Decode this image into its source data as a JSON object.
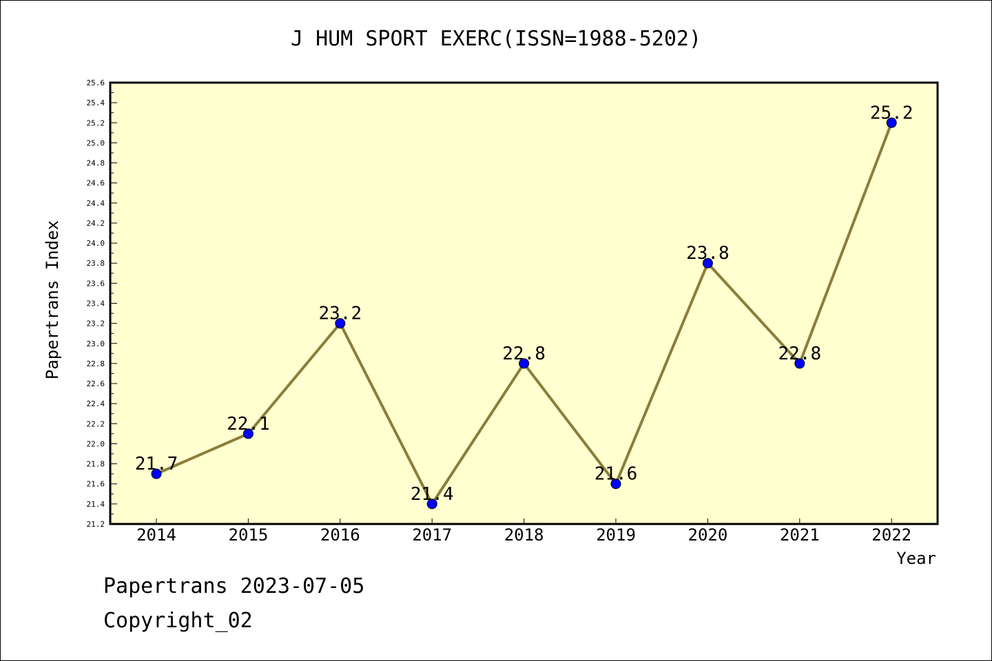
{
  "chart_data": {
    "type": "line",
    "title": "J HUM SPORT EXERC(ISSN=1988-5202)",
    "xlabel": "Year",
    "ylabel": "Papertrans Index",
    "categories": [
      "2014",
      "2015",
      "2016",
      "2017",
      "2018",
      "2019",
      "2020",
      "2021",
      "2022"
    ],
    "values": [
      21.7,
      22.1,
      23.2,
      21.4,
      22.8,
      21.6,
      23.8,
      22.8,
      25.2
    ],
    "data_labels": [
      "21.7",
      "22.1",
      "23.2",
      "21.4",
      "22.8",
      "21.6",
      "23.8",
      "22.8",
      "25.2"
    ],
    "ylim": [
      21.2,
      25.6
    ],
    "yticks": [
      "21.2",
      "21.4",
      "21.6",
      "21.8",
      "22.0",
      "22.2",
      "22.4",
      "22.6",
      "22.8",
      "23.0",
      "23.2",
      "23.4",
      "23.6",
      "23.8",
      "24.0",
      "24.2",
      "24.4",
      "24.6",
      "24.8",
      "25.0",
      "25.2",
      "25.4",
      "25.6"
    ],
    "grid": false,
    "colors": {
      "plot_background": "#ffffd0",
      "line": "#8b7d3a",
      "marker": "#0000ff"
    }
  },
  "footer": {
    "date_line": "Papertrans 2023-07-05",
    "copyright_line": "Copyright_02"
  }
}
